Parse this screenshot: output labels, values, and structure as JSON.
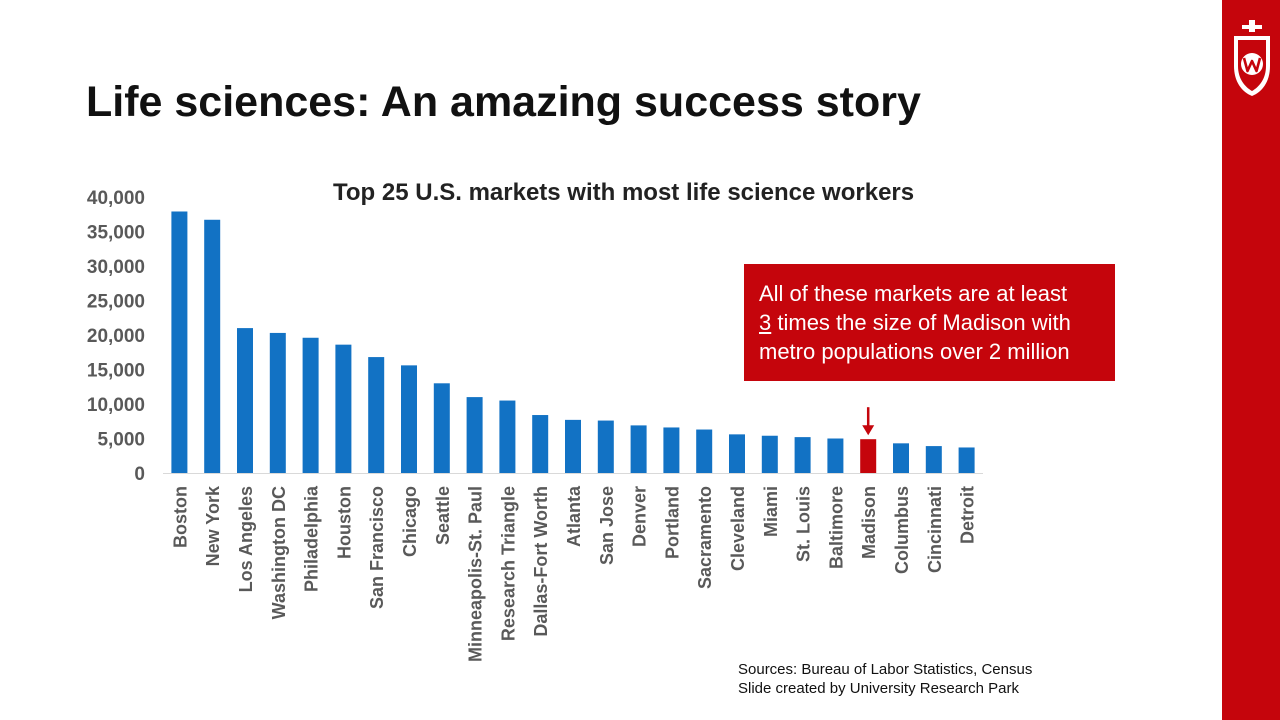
{
  "slide": {
    "title": "Life sciences:  An amazing success story"
  },
  "callout": {
    "line1": "All of these markets are at least",
    "line2_number": "3",
    "line2_rest": " times the size of Madison with",
    "line3": "metro populations over 2 million"
  },
  "sources": {
    "line1": "Sources: Bureau of Labor Statistics, Census",
    "line2": "Slide created by University Research Park"
  },
  "colors": {
    "bar": "#1272c4",
    "highlight": "#c5050c",
    "sidebar": "#c5050c",
    "tick_text": "#595959"
  },
  "chart_data": {
    "type": "bar",
    "title": "Top 25 U.S. markets with most life science workers",
    "xlabel": "",
    "ylabel": "",
    "ylim": [
      0,
      40000
    ],
    "yticks": [
      0,
      5000,
      10000,
      15000,
      20000,
      25000,
      30000,
      35000,
      40000
    ],
    "ytick_labels": [
      "0",
      "5,000",
      "10,000",
      "15,000",
      "20,000",
      "25,000",
      "30,000",
      "35,000",
      "40,000"
    ],
    "grid": false,
    "highlight": "Madison",
    "highlight_marker": "arrow",
    "categories": [
      "Boston",
      "New York",
      "Los Angeles",
      "Washington DC",
      "Philadelphia",
      "Houston",
      "San Francisco",
      "Chicago",
      "Seattle",
      "Minneapolis-St. Paul",
      "Research Triangle",
      "Dallas-Fort Worth",
      "Atlanta",
      "San Jose",
      "Denver",
      "Portland",
      "Sacramento",
      "Cleveland",
      "Miami",
      "St. Louis",
      "Baltimore",
      "Madison",
      "Columbus",
      "Cincinnati",
      "Detroit"
    ],
    "values": [
      37900,
      36700,
      21000,
      20300,
      19600,
      18600,
      16800,
      15600,
      13000,
      11000,
      10500,
      8400,
      7700,
      7600,
      6900,
      6600,
      6300,
      5600,
      5400,
      5200,
      5000,
      4900,
      4300,
      3900,
      3700
    ]
  }
}
